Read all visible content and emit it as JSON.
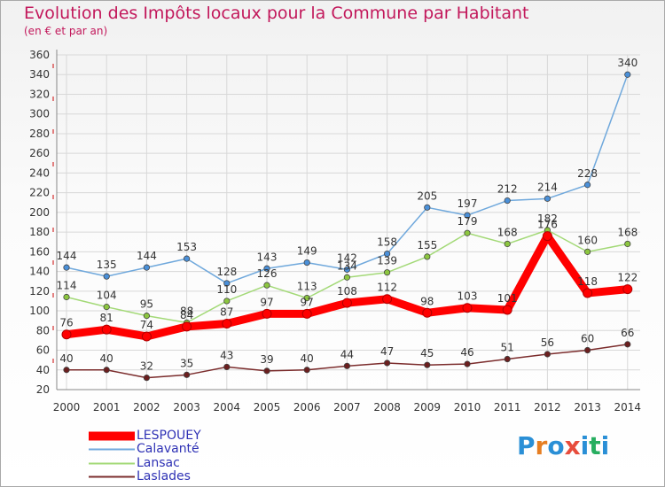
{
  "title": "Evolution des Impôts locaux pour la Commune par Habitant",
  "subtitle": "(en € et par an)",
  "logo": {
    "text": "Proxiti",
    "colors": [
      "#2a8fd6",
      "#e67e22",
      "#2a8fd6",
      "#e74c3c",
      "#2a8fd6",
      "#27ae60",
      "#2a8fd6"
    ]
  },
  "chart_data": {
    "type": "line",
    "x": [
      "2000",
      "2001",
      "2002",
      "2003",
      "2004",
      "2005",
      "2006",
      "2007",
      "2008",
      "2009",
      "2010",
      "2011",
      "2012",
      "2013",
      "2014"
    ],
    "ylim": [
      20,
      360
    ],
    "yticks": [
      20,
      40,
      60,
      80,
      100,
      120,
      140,
      160,
      180,
      200,
      220,
      240,
      260,
      280,
      300,
      320,
      340,
      360
    ],
    "grid": true,
    "legend_placement": "bottom-left",
    "series": [
      {
        "name": "LESPOUEY",
        "color": "#ff0000",
        "values": [
          76,
          81,
          74,
          84,
          87,
          97,
          97,
          108,
          112,
          98,
          103,
          101,
          176,
          118,
          122
        ],
        "labels": [
          "76",
          "81",
          "74",
          "84",
          "87",
          "97",
          "97",
          "108",
          "112",
          "98",
          "103",
          "101",
          "176",
          "118",
          "122"
        ]
      },
      {
        "name": "Calavanté",
        "color": "#6fa8dc",
        "values": [
          144,
          135,
          144,
          153,
          128,
          143,
          149,
          142,
          158,
          205,
          197,
          212,
          214,
          228,
          340
        ],
        "labels": [
          "144",
          "135",
          "144",
          "153",
          "128",
          "143",
          "149",
          "142",
          "158",
          "205",
          "197",
          "212",
          "214",
          "228",
          "340"
        ]
      },
      {
        "name": "Lansac",
        "color": "#a3d977",
        "values": [
          114,
          104,
          95,
          88,
          110,
          126,
          113,
          134,
          139,
          155,
          179,
          168,
          182,
          160,
          168
        ],
        "labels": [
          "114",
          "104",
          "95",
          "88",
          "110",
          "126",
          "113",
          "134",
          "139",
          "155",
          "179",
          "168",
          "182",
          "160",
          "168"
        ]
      },
      {
        "name": "Laslades",
        "color": "#7b2c2c",
        "values": [
          40,
          40,
          32,
          35,
          43,
          39,
          40,
          44,
          47,
          45,
          46,
          51,
          56,
          60,
          66
        ],
        "labels": [
          "40",
          "40",
          "32",
          "35",
          "43",
          "39",
          "40",
          "44",
          "47",
          "45",
          "46",
          "51",
          "56",
          "60",
          "66"
        ]
      }
    ]
  }
}
